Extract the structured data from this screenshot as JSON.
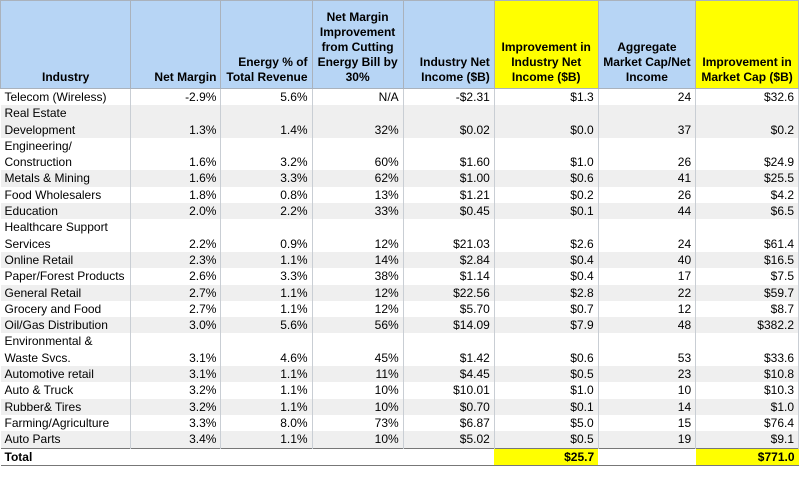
{
  "columns": [
    "Industry",
    "Net Margin",
    "Energy % of Total Revenue",
    "Net Margin Improvement from Cutting Energy Bill by 30%",
    "Industry Net Income ($B)",
    "Improvement in Industry Net Income ($B)",
    "Aggregate Market Cap/Net Income",
    "Improvement in Market Cap ($B)"
  ],
  "rows": [
    [
      "Telecom (Wireless)",
      "-2.9%",
      "5.6%",
      "N/A",
      "-$2.31",
      "$1.3",
      "24",
      "$32.6"
    ],
    [
      "Real Estate Development",
      "1.3%",
      "1.4%",
      "32%",
      "$0.02",
      "$0.0",
      "37",
      "$0.2"
    ],
    [
      "Engineering/ Construction",
      "1.6%",
      "3.2%",
      "60%",
      "$1.60",
      "$1.0",
      "26",
      "$24.9"
    ],
    [
      "Metals & Mining",
      "1.6%",
      "3.3%",
      "62%",
      "$1.00",
      "$0.6",
      "41",
      "$25.5"
    ],
    [
      "Food Wholesalers",
      "1.8%",
      "0.8%",
      "13%",
      "$1.21",
      "$0.2",
      "26",
      "$4.2"
    ],
    [
      "Education",
      "2.0%",
      "2.2%",
      "33%",
      "$0.45",
      "$0.1",
      "44",
      "$6.5"
    ],
    [
      "Healthcare Support Services",
      "2.2%",
      "0.9%",
      "12%",
      "$21.03",
      "$2.6",
      "24",
      "$61.4"
    ],
    [
      "Online Retail",
      "2.3%",
      "1.1%",
      "14%",
      "$2.84",
      "$0.4",
      "40",
      "$16.5"
    ],
    [
      "Paper/Forest Products",
      "2.6%",
      "3.3%",
      "38%",
      "$1.14",
      "$0.4",
      "17",
      "$7.5"
    ],
    [
      "General Retail",
      "2.7%",
      "1.1%",
      "12%",
      "$22.56",
      "$2.8",
      "22",
      "$59.7"
    ],
    [
      "Grocery and Food",
      "2.7%",
      "1.1%",
      "12%",
      "$5.70",
      "$0.7",
      "12",
      "$8.7"
    ],
    [
      "Oil/Gas Distribution",
      "3.0%",
      "5.6%",
      "56%",
      "$14.09",
      "$7.9",
      "48",
      "$382.2"
    ],
    [
      "Environmental & Waste Svcs.",
      "3.1%",
      "4.6%",
      "45%",
      "$1.42",
      "$0.6",
      "53",
      "$33.6"
    ],
    [
      "Automotive retail",
      "3.1%",
      "1.1%",
      "11%",
      "$4.45",
      "$0.5",
      "23",
      "$10.8"
    ],
    [
      "Auto & Truck",
      "3.2%",
      "1.1%",
      "10%",
      "$10.01",
      "$1.0",
      "10",
      "$10.3"
    ],
    [
      "Rubber& Tires",
      "3.2%",
      "1.1%",
      "10%",
      "$0.70",
      "$0.1",
      "14",
      "$1.0"
    ],
    [
      "Farming/Agriculture",
      "3.3%",
      "8.0%",
      "73%",
      "$6.87",
      "$5.0",
      "15",
      "$76.4"
    ],
    [
      "Auto Parts",
      "3.4%",
      "1.1%",
      "10%",
      "$5.02",
      "$0.5",
      "19",
      "$9.1"
    ]
  ],
  "total": {
    "label": "Total",
    "improvement_net_income": "$25.7",
    "improvement_market_cap": "$771.0"
  },
  "colors": {
    "header": "#b7d5f5",
    "highlight": "#ffff00",
    "stripe": "#efefef"
  }
}
